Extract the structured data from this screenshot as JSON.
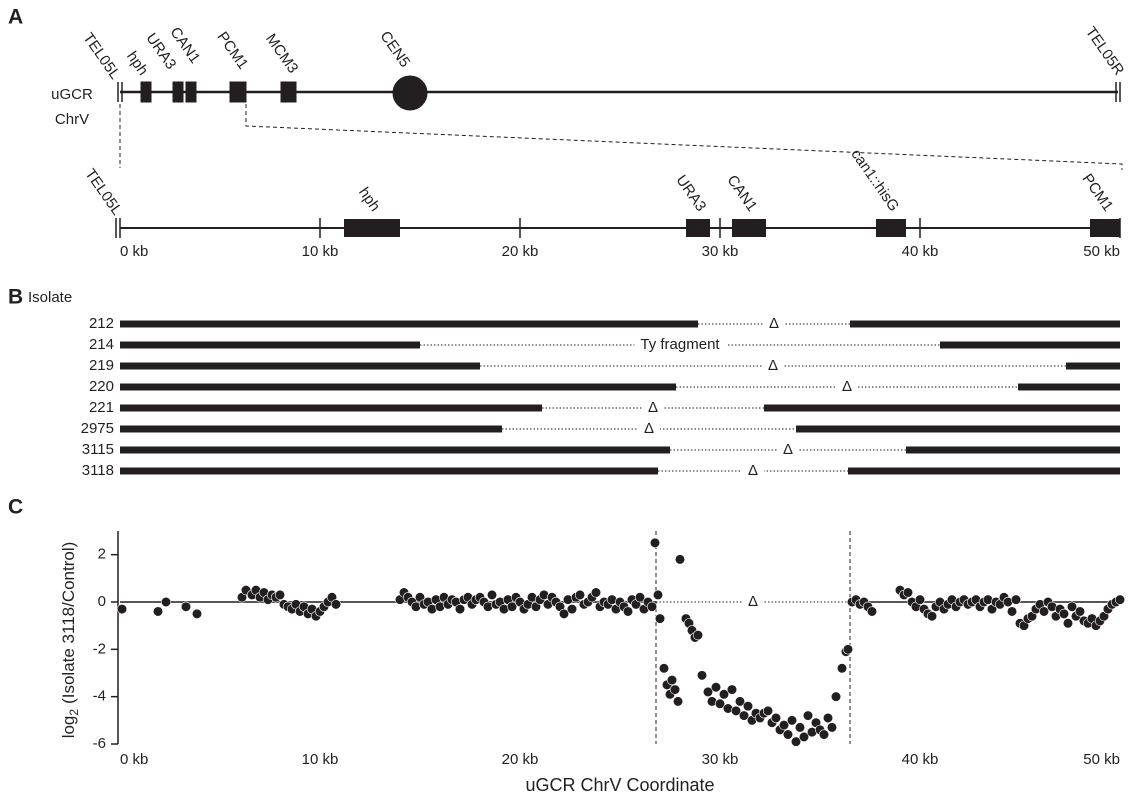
{
  "panel_a": {
    "label": "A",
    "chromosome": {
      "name": [
        "uGCR",
        "ChrV"
      ],
      "features": [
        "TEL05L",
        "hph",
        "URA3",
        "CAN1",
        "PCM1",
        "MCM3",
        "CEN5",
        "TEL05R"
      ]
    },
    "zoom": {
      "left_end": "TEL05L",
      "xlim": [
        0,
        50
      ],
      "ticks": [
        {
          "value": 0,
          "label": "0 kb"
        },
        {
          "value": 10,
          "label": "10 kb"
        },
        {
          "value": 20,
          "label": "20 kb"
        },
        {
          "value": 30,
          "label": "30 kb"
        },
        {
          "value": 40,
          "label": "40 kb"
        },
        {
          "value": 50,
          "label": "50 kb"
        }
      ],
      "genes": [
        {
          "name": "hph",
          "start": 11.2,
          "end": 14.0
        },
        {
          "name": "URA3",
          "start": 28.3,
          "end": 29.5
        },
        {
          "name": "CAN1",
          "start": 30.6,
          "end": 32.3
        },
        {
          "name": "can1::hisG",
          "start": 37.8,
          "end": 39.3
        },
        {
          "name": "PCM1",
          "start": 48.5,
          "end": 50.0
        }
      ]
    }
  },
  "panel_b": {
    "label": "B",
    "header": "Isolate",
    "xlim": [
      0,
      50
    ],
    "rows": [
      {
        "name": "212",
        "left_end": 28.9,
        "right_start": 36.5,
        "gap_label": "Δ"
      },
      {
        "name": "214",
        "left_end": 15.0,
        "right_start": 41.0,
        "gap_label": "Ty fragment"
      },
      {
        "name": "219",
        "left_end": 18.0,
        "right_start": 47.3,
        "gap_label": "Δ"
      },
      {
        "name": "220",
        "left_end": 27.8,
        "right_start": 44.9,
        "gap_label": "Δ"
      },
      {
        "name": "221",
        "left_end": 21.1,
        "right_start": 32.2,
        "gap_label": "Δ"
      },
      {
        "name": "2975",
        "left_end": 19.1,
        "right_start": 33.8,
        "gap_label": "Δ"
      },
      {
        "name": "3115",
        "left_end": 27.5,
        "right_start": 39.3,
        "gap_label": "Δ"
      },
      {
        "name": "3118",
        "left_end": 26.9,
        "right_start": 36.4,
        "gap_label": "Δ"
      }
    ]
  },
  "chart_data": {
    "type": "scatter",
    "label": "C",
    "xlabel": "uGCR ChrV Coordinate",
    "ylabel": {
      "text": "log",
      "subscript": "2",
      "rest": "(Isolate 3118/Control)"
    },
    "color": "#231f20",
    "xlim": [
      0,
      50
    ],
    "ylim": [
      -6,
      3
    ],
    "xticks": [
      {
        "value": 0,
        "label": "0 kb"
      },
      {
        "value": 10,
        "label": "10 kb"
      },
      {
        "value": 20,
        "label": "20 kb"
      },
      {
        "value": 30,
        "label": "30 kb"
      },
      {
        "value": 40,
        "label": "40 kb"
      },
      {
        "value": 50,
        "label": "50 kb"
      }
    ],
    "yticks": [
      -6,
      -4,
      -2,
      0,
      2
    ],
    "deletion": [
      26.8,
      36.5
    ],
    "deletion_label": "Δ",
    "x": [
      0.1,
      1.9,
      2.3,
      3.3,
      3.85,
      6.1,
      6.3,
      6.6,
      6.8,
      7.0,
      7.2,
      7.4,
      7.6,
      7.8,
      8.0,
      8.2,
      8.4,
      8.6,
      8.8,
      9.0,
      9.2,
      9.4,
      9.6,
      9.8,
      10.0,
      10.2,
      10.4,
      10.6,
      10.8,
      14.0,
      14.2,
      14.4,
      14.6,
      14.8,
      15.0,
      15.2,
      15.4,
      15.6,
      15.8,
      16.0,
      16.2,
      16.4,
      16.6,
      16.8,
      17.0,
      17.2,
      17.4,
      17.6,
      17.8,
      18.0,
      18.2,
      18.4,
      18.6,
      18.8,
      19.0,
      19.2,
      19.4,
      19.6,
      19.8,
      20.0,
      20.2,
      20.4,
      20.6,
      20.8,
      21.0,
      21.2,
      21.4,
      21.6,
      21.8,
      22.0,
      22.2,
      22.4,
      22.6,
      22.8,
      23.0,
      23.2,
      23.4,
      23.6,
      23.8,
      24.0,
      24.2,
      24.4,
      24.6,
      24.8,
      25.0,
      25.2,
      25.4,
      25.6,
      25.8,
      26.0,
      26.2,
      26.4,
      26.6,
      26.75,
      26.9,
      27.0,
      27.2,
      27.35,
      27.5,
      27.6,
      27.75,
      27.9,
      28.0,
      28.3,
      28.45,
      28.6,
      28.75,
      28.9,
      29.1,
      29.4,
      29.6,
      29.8,
      30.0,
      30.2,
      30.4,
      30.6,
      30.8,
      31.0,
      31.2,
      31.4,
      31.6,
      31.8,
      32.0,
      32.2,
      32.4,
      32.6,
      32.8,
      33.0,
      33.2,
      33.4,
      33.6,
      33.8,
      34.0,
      34.2,
      34.4,
      34.6,
      34.8,
      35.0,
      35.2,
      35.4,
      35.6,
      35.8,
      36.1,
      36.3,
      36.4,
      36.6,
      36.8,
      37.0,
      37.2,
      37.4,
      37.6,
      39.0,
      39.2,
      39.4,
      39.6,
      39.8,
      40.0,
      40.2,
      40.4,
      40.6,
      40.8,
      41.0,
      41.2,
      41.4,
      41.6,
      41.8,
      42.0,
      42.2,
      42.4,
      42.6,
      42.8,
      43.0,
      43.2,
      43.4,
      43.6,
      43.8,
      44.0,
      44.2,
      44.4,
      44.6,
      44.8,
      45.0,
      45.2,
      45.4,
      45.6,
      45.8,
      46.0,
      46.2,
      46.4,
      46.6,
      46.8,
      47.0,
      47.2,
      47.4,
      47.6,
      47.8,
      48.0,
      48.2,
      48.4,
      48.6,
      48.8,
      49.0,
      49.2,
      49.4,
      49.6,
      49.8,
      50.0
    ],
    "values": [
      -0.3,
      -0.4,
      0.0,
      -0.2,
      -0.5,
      0.2,
      0.5,
      0.3,
      0.5,
      0.2,
      0.4,
      0.1,
      0.3,
      0.2,
      0.3,
      -0.1,
      -0.2,
      -0.3,
      -0.1,
      -0.4,
      -0.2,
      -0.5,
      -0.3,
      -0.6,
      -0.4,
      -0.2,
      0.0,
      0.2,
      -0.1,
      0.1,
      0.4,
      0.2,
      0.0,
      -0.2,
      0.2,
      -0.1,
      0.0,
      -0.3,
      0.1,
      -0.2,
      0.2,
      -0.1,
      0.1,
      0.0,
      -0.3,
      0.1,
      0.2,
      -0.1,
      0.1,
      0.2,
      0.0,
      -0.2,
      0.3,
      -0.1,
      0.0,
      -0.3,
      0.1,
      -0.2,
      0.2,
      0.0,
      -0.3,
      -0.1,
      0.2,
      -0.2,
      0.1,
      0.3,
      -0.1,
      0.2,
      0.0,
      -0.2,
      -0.5,
      0.1,
      -0.3,
      0.2,
      0.3,
      -0.1,
      0.0,
      0.2,
      0.4,
      -0.2,
      0.0,
      -0.1,
      0.1,
      -0.3,
      0.0,
      -0.2,
      -0.4,
      0.1,
      -0.1,
      0.2,
      -0.3,
      0.0,
      -0.2,
      2.5,
      0.3,
      -0.7,
      -2.8,
      -3.5,
      -3.9,
      -3.3,
      -3.7,
      -4.2,
      1.8,
      -0.7,
      -0.9,
      -1.2,
      -1.5,
      -1.4,
      -3.1,
      -3.8,
      -4.2,
      -3.6,
      -4.3,
      -3.9,
      -4.5,
      -3.7,
      -4.6,
      -4.2,
      -4.8,
      -4.4,
      -5.0,
      -4.7,
      -4.9,
      -4.7,
      -4.6,
      -5.1,
      -4.9,
      -5.4,
      -5.2,
      -5.6,
      -5.0,
      -5.9,
      -5.3,
      -5.7,
      -4.8,
      -5.5,
      -5.1,
      -5.4,
      -5.6,
      -4.9,
      -5.3,
      -4.0,
      -2.8,
      -2.1,
      -2.0,
      0.0,
      0.1,
      -0.1,
      0.0,
      -0.2,
      -0.4,
      0.5,
      0.3,
      0.4,
      0.0,
      -0.2,
      0.1,
      -0.3,
      -0.5,
      -0.6,
      -0.2,
      0.0,
      -0.3,
      -0.1,
      0.1,
      -0.2,
      0.0,
      0.1,
      -0.1,
      0.0,
      0.1,
      -0.2,
      0.0,
      0.1,
      -0.3,
      0.0,
      -0.1,
      0.2,
      0.0,
      -0.4,
      0.1,
      -0.9,
      -1.0,
      -0.7,
      -0.6,
      -0.3,
      -0.1,
      -0.4,
      0.0,
      -0.2,
      -0.6,
      -0.3,
      -0.5,
      -0.9,
      -0.2,
      -0.6,
      -0.4,
      -0.8,
      -0.9,
      -0.7,
      -1.0,
      -0.8,
      -0.6,
      -0.3,
      -0.1,
      0.0,
      0.1
    ]
  }
}
